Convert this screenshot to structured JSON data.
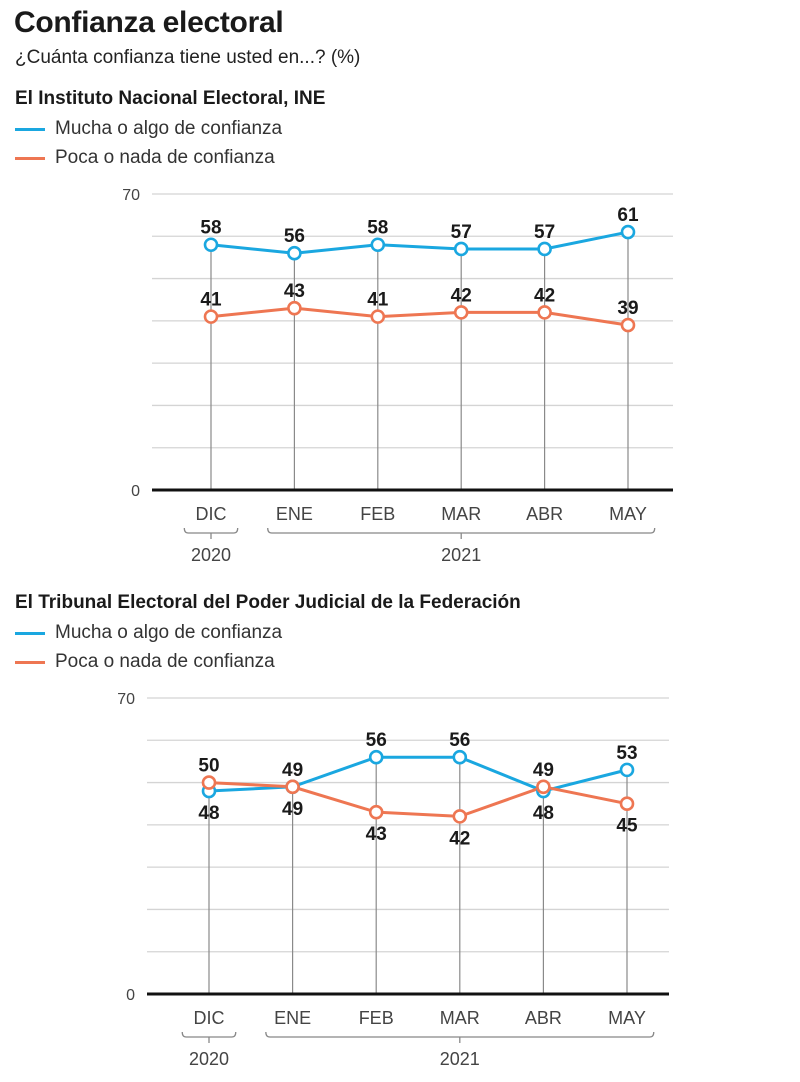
{
  "title": "Confianza electoral",
  "subtitle": "¿Cuánta confianza tiene usted en...? (%)",
  "colors": {
    "mucha": "#1aa7e0",
    "poca": "#ee7652",
    "grid": "#d4d4d4",
    "axis": "#111111",
    "tick_text": "#444444"
  },
  "chart_data": [
    {
      "type": "line",
      "title": "El Instituto Nacional Electoral, INE",
      "categories": [
        "DIC",
        "ENE",
        "FEB",
        "MAR",
        "ABR",
        "MAY"
      ],
      "year_groups": [
        {
          "label": "2020",
          "from": 0,
          "to": 0
        },
        {
          "label": "2021",
          "from": 1,
          "to": 5
        }
      ],
      "ylim": [
        0,
        70
      ],
      "yticks_labeled": [
        0,
        70
      ],
      "grid_step": 10,
      "grid": true,
      "legend_position": "top-left",
      "series": [
        {
          "name": "Mucha o algo de confianza",
          "key": "mucha",
          "values": [
            58,
            56,
            58,
            57,
            57,
            61
          ],
          "label_pos": [
            "above",
            "above",
            "above",
            "above",
            "above",
            "above"
          ]
        },
        {
          "name": "Poca o nada de confianza",
          "key": "poca",
          "values": [
            41,
            43,
            41,
            42,
            42,
            39
          ],
          "label_pos": [
            "above",
            "above",
            "above",
            "above",
            "above",
            "above"
          ]
        }
      ]
    },
    {
      "type": "line",
      "title": "El Tribunal Electoral del Poder Judicial de la Federación",
      "categories": [
        "DIC",
        "ENE",
        "FEB",
        "MAR",
        "ABR",
        "MAY"
      ],
      "year_groups": [
        {
          "label": "2020",
          "from": 0,
          "to": 0
        },
        {
          "label": "2021",
          "from": 1,
          "to": 5
        }
      ],
      "ylim": [
        0,
        70
      ],
      "yticks_labeled": [
        0,
        70
      ],
      "grid_step": 10,
      "grid": true,
      "legend_position": "top-left",
      "series": [
        {
          "name": "Mucha o algo de confianza",
          "key": "mucha",
          "values": [
            48,
            49,
            56,
            56,
            48,
            53
          ],
          "label_pos": [
            "below",
            "above",
            "above",
            "above",
            "below",
            "above"
          ]
        },
        {
          "name": "Poca o nada de confianza",
          "key": "poca",
          "values": [
            50,
            49,
            43,
            42,
            49,
            45
          ],
          "label_pos": [
            "above",
            "below",
            "below",
            "below",
            "above",
            "below"
          ]
        }
      ]
    }
  ]
}
